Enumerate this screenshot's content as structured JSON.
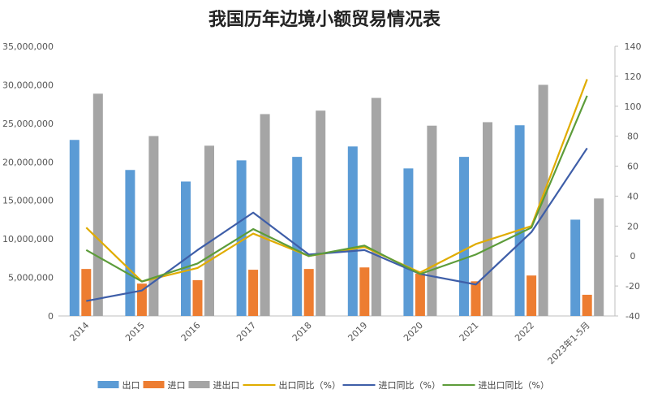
{
  "chart_data": {
    "type": "bar",
    "title": "我国历年边境小额贸易情况表",
    "categories": [
      "2014",
      "2015",
      "2016",
      "2017",
      "2018",
      "2019",
      "2020",
      "2021",
      "2022",
      "2023年1-5月"
    ],
    "bar_series": [
      {
        "name": "出口",
        "color": "#5b9bd5",
        "values": [
          22850000,
          18950000,
          17450000,
          20200000,
          20650000,
          22000000,
          19150000,
          20650000,
          24750000,
          12500000
        ]
      },
      {
        "name": "进口",
        "color": "#ed7d31",
        "values": [
          6100000,
          4200000,
          4650000,
          6000000,
          6100000,
          6300000,
          5500000,
          4500000,
          5250000,
          2750000
        ]
      },
      {
        "name": "进出口",
        "color": "#a5a5a5",
        "values": [
          28850000,
          23350000,
          22100000,
          26200000,
          26650000,
          28300000,
          24700000,
          25150000,
          30000000,
          15250000
        ]
      }
    ],
    "line_series": [
      {
        "name": "出口同比（%）",
        "color": "#e0ac00",
        "values": [
          19,
          -17,
          -8,
          15,
          0,
          6,
          -11,
          8,
          20,
          118
        ]
      },
      {
        "name": "进口同比（%）",
        "color": "#3e5ea8",
        "values": [
          -30,
          -23,
          4,
          29,
          1,
          4,
          -12,
          -19,
          16,
          72
        ]
      },
      {
        "name": "进出口同比（%）",
        "color": "#5d9c3a",
        "values": [
          4,
          -17,
          -5,
          18,
          0,
          7,
          -12,
          1,
          19,
          107
        ]
      }
    ],
    "ylim_left": [
      0,
      35000000
    ],
    "ylim_right": [
      -40,
      140
    ],
    "left_ticks": [
      "0",
      "5,000,000",
      "10,000,000",
      "15,000,000",
      "20,000,000",
      "25,000,000",
      "30,000,000",
      "35,000,000"
    ],
    "right_ticks": [
      "-40",
      "-20",
      "0",
      "20",
      "40",
      "60",
      "80",
      "100",
      "120",
      "140"
    ],
    "grid": false,
    "legend_position": "bottom"
  }
}
